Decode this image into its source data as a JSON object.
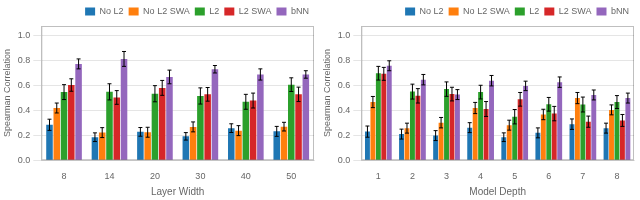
{
  "chart_data": [
    {
      "type": "bar",
      "xlabel": "Layer Width",
      "ylabel": "Spearman Correlation",
      "categories": [
        8,
        14,
        20,
        30,
        40,
        50
      ],
      "ylim": [
        0.0,
        1.08
      ],
      "yticks": [
        {
          "value": 0.0,
          "label": "0.0"
        },
        0.2,
        0.4,
        0.6,
        0.8,
        {
          "value": 1.0,
          "label": "1.0"
        }
      ],
      "grid": true,
      "legend": "upper right",
      "series": [
        {
          "name": "No L2",
          "color": "#1f77b4",
          "values": [
            0.285,
            0.185,
            0.228,
            0.192,
            0.258,
            0.232
          ],
          "errors": [
            0.045,
            0.035,
            0.035,
            0.03,
            0.035,
            0.04
          ]
        },
        {
          "name": "No L2 SWA",
          "color": "#ff7f0e",
          "values": [
            0.42,
            0.222,
            0.225,
            0.268,
            0.238,
            0.27
          ],
          "errors": [
            0.04,
            0.04,
            0.04,
            0.04,
            0.04,
            0.035
          ]
        },
        {
          "name": "L2",
          "color": "#2ca02c",
          "values": [
            0.548,
            0.55,
            0.535,
            0.517,
            0.47,
            0.608
          ],
          "errors": [
            0.06,
            0.065,
            0.065,
            0.065,
            0.06,
            0.055
          ]
        },
        {
          "name": "L2 SWA",
          "color": "#d62728",
          "values": [
            0.605,
            0.505,
            0.582,
            0.53,
            0.48,
            0.53
          ],
          "errors": [
            0.05,
            0.055,
            0.06,
            0.055,
            0.06,
            0.058
          ]
        },
        {
          "name": "bNN",
          "color": "#9467bd",
          "values": [
            0.775,
            0.815,
            0.67,
            0.732,
            0.69,
            0.69
          ],
          "errors": [
            0.04,
            0.06,
            0.055,
            0.03,
            0.045,
            0.03
          ]
        }
      ]
    },
    {
      "type": "bar",
      "xlabel": "Model Depth",
      "ylabel": "Spearman Correlation",
      "categories": [
        1,
        2,
        3,
        4,
        5,
        6,
        7,
        8
      ],
      "ylim": [
        0.0,
        1.08
      ],
      "yticks": [
        {
          "value": 0.0,
          "label": "0.0"
        },
        0.2,
        0.4,
        0.6,
        0.8,
        {
          "value": 1.0,
          "label": "1.0"
        }
      ],
      "grid": true,
      "legend": "upper right",
      "series": [
        {
          "name": "No L2",
          "color": "#1f77b4",
          "values": [
            0.23,
            0.21,
            0.198,
            0.262,
            0.185,
            0.22,
            0.29,
            0.258
          ],
          "errors": [
            0.045,
            0.04,
            0.04,
            0.04,
            0.035,
            0.04,
            0.042,
            0.04
          ]
        },
        {
          "name": "No L2 SWA",
          "color": "#ff7f0e",
          "values": [
            0.468,
            0.258,
            0.302,
            0.42,
            0.282,
            0.368,
            0.5,
            0.405
          ],
          "errors": [
            0.045,
            0.04,
            0.042,
            0.045,
            0.04,
            0.042,
            0.045,
            0.04
          ]
        },
        {
          "name": "L2",
          "color": "#2ca02c",
          "values": [
            0.7,
            0.552,
            0.572,
            0.548,
            0.35,
            0.45,
            0.448,
            0.468
          ],
          "errors": [
            0.055,
            0.06,
            0.058,
            0.055,
            0.058,
            0.055,
            0.06,
            0.052
          ]
        },
        {
          "name": "L2 SWA",
          "color": "#d62728",
          "values": [
            0.695,
            0.518,
            0.532,
            0.412,
            0.49,
            0.375,
            0.31,
            0.32
          ],
          "errors": [
            0.052,
            0.058,
            0.055,
            0.06,
            0.055,
            0.058,
            0.045,
            0.048
          ]
        },
        {
          "name": "bNN",
          "color": "#9467bd",
          "values": [
            0.76,
            0.648,
            0.528,
            0.64,
            0.598,
            0.628,
            0.525,
            0.5
          ],
          "errors": [
            0.04,
            0.042,
            0.04,
            0.042,
            0.038,
            0.042,
            0.04,
            0.04
          ]
        }
      ]
    }
  ]
}
